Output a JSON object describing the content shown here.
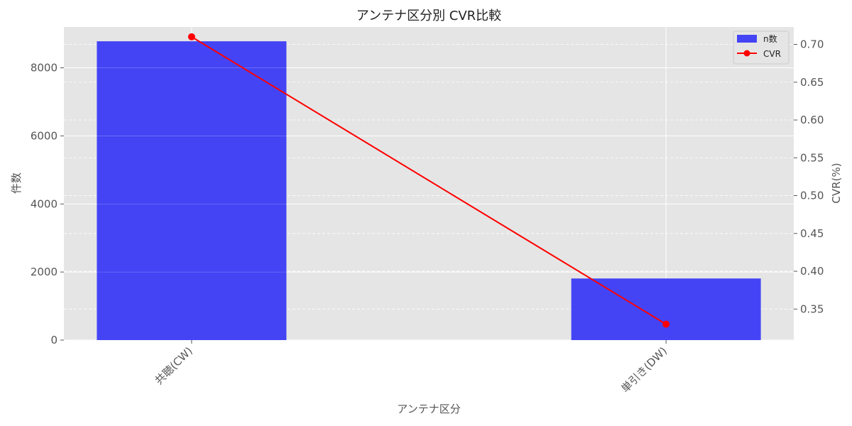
{
  "chart_data": {
    "type": "bar",
    "title": "アンテナ区分別 CVR比較",
    "xlabel": "アンテナ区分",
    "ylabel_left": "件数",
    "ylabel_right": "CVR(%)",
    "categories": [
      "共聴(CW)",
      "単引き(DW)"
    ],
    "series": [
      {
        "name": "n数",
        "type": "bar",
        "axis": "left",
        "values": [
          8780,
          1810
        ],
        "color": "#4444f5"
      },
      {
        "name": "CVR",
        "type": "line",
        "axis": "right",
        "values": [
          0.71,
          0.33
        ],
        "color": "#ff0000"
      }
    ],
    "ylim_left": [
      0,
      9200
    ],
    "yticks_left": [
      "0",
      "2000",
      "4000",
      "6000",
      "8000"
    ],
    "ylim_right": [
      0.309,
      0.723
    ],
    "yticks_right": [
      "0.35",
      "0.40",
      "0.45",
      "0.50",
      "0.55",
      "0.60",
      "0.65",
      "0.70"
    ],
    "grid": true,
    "legend": "top-right",
    "colors": {
      "background": "#e5e5e5",
      "grid": "#ffffff",
      "left_axis_label": "#0000ff"
    }
  }
}
